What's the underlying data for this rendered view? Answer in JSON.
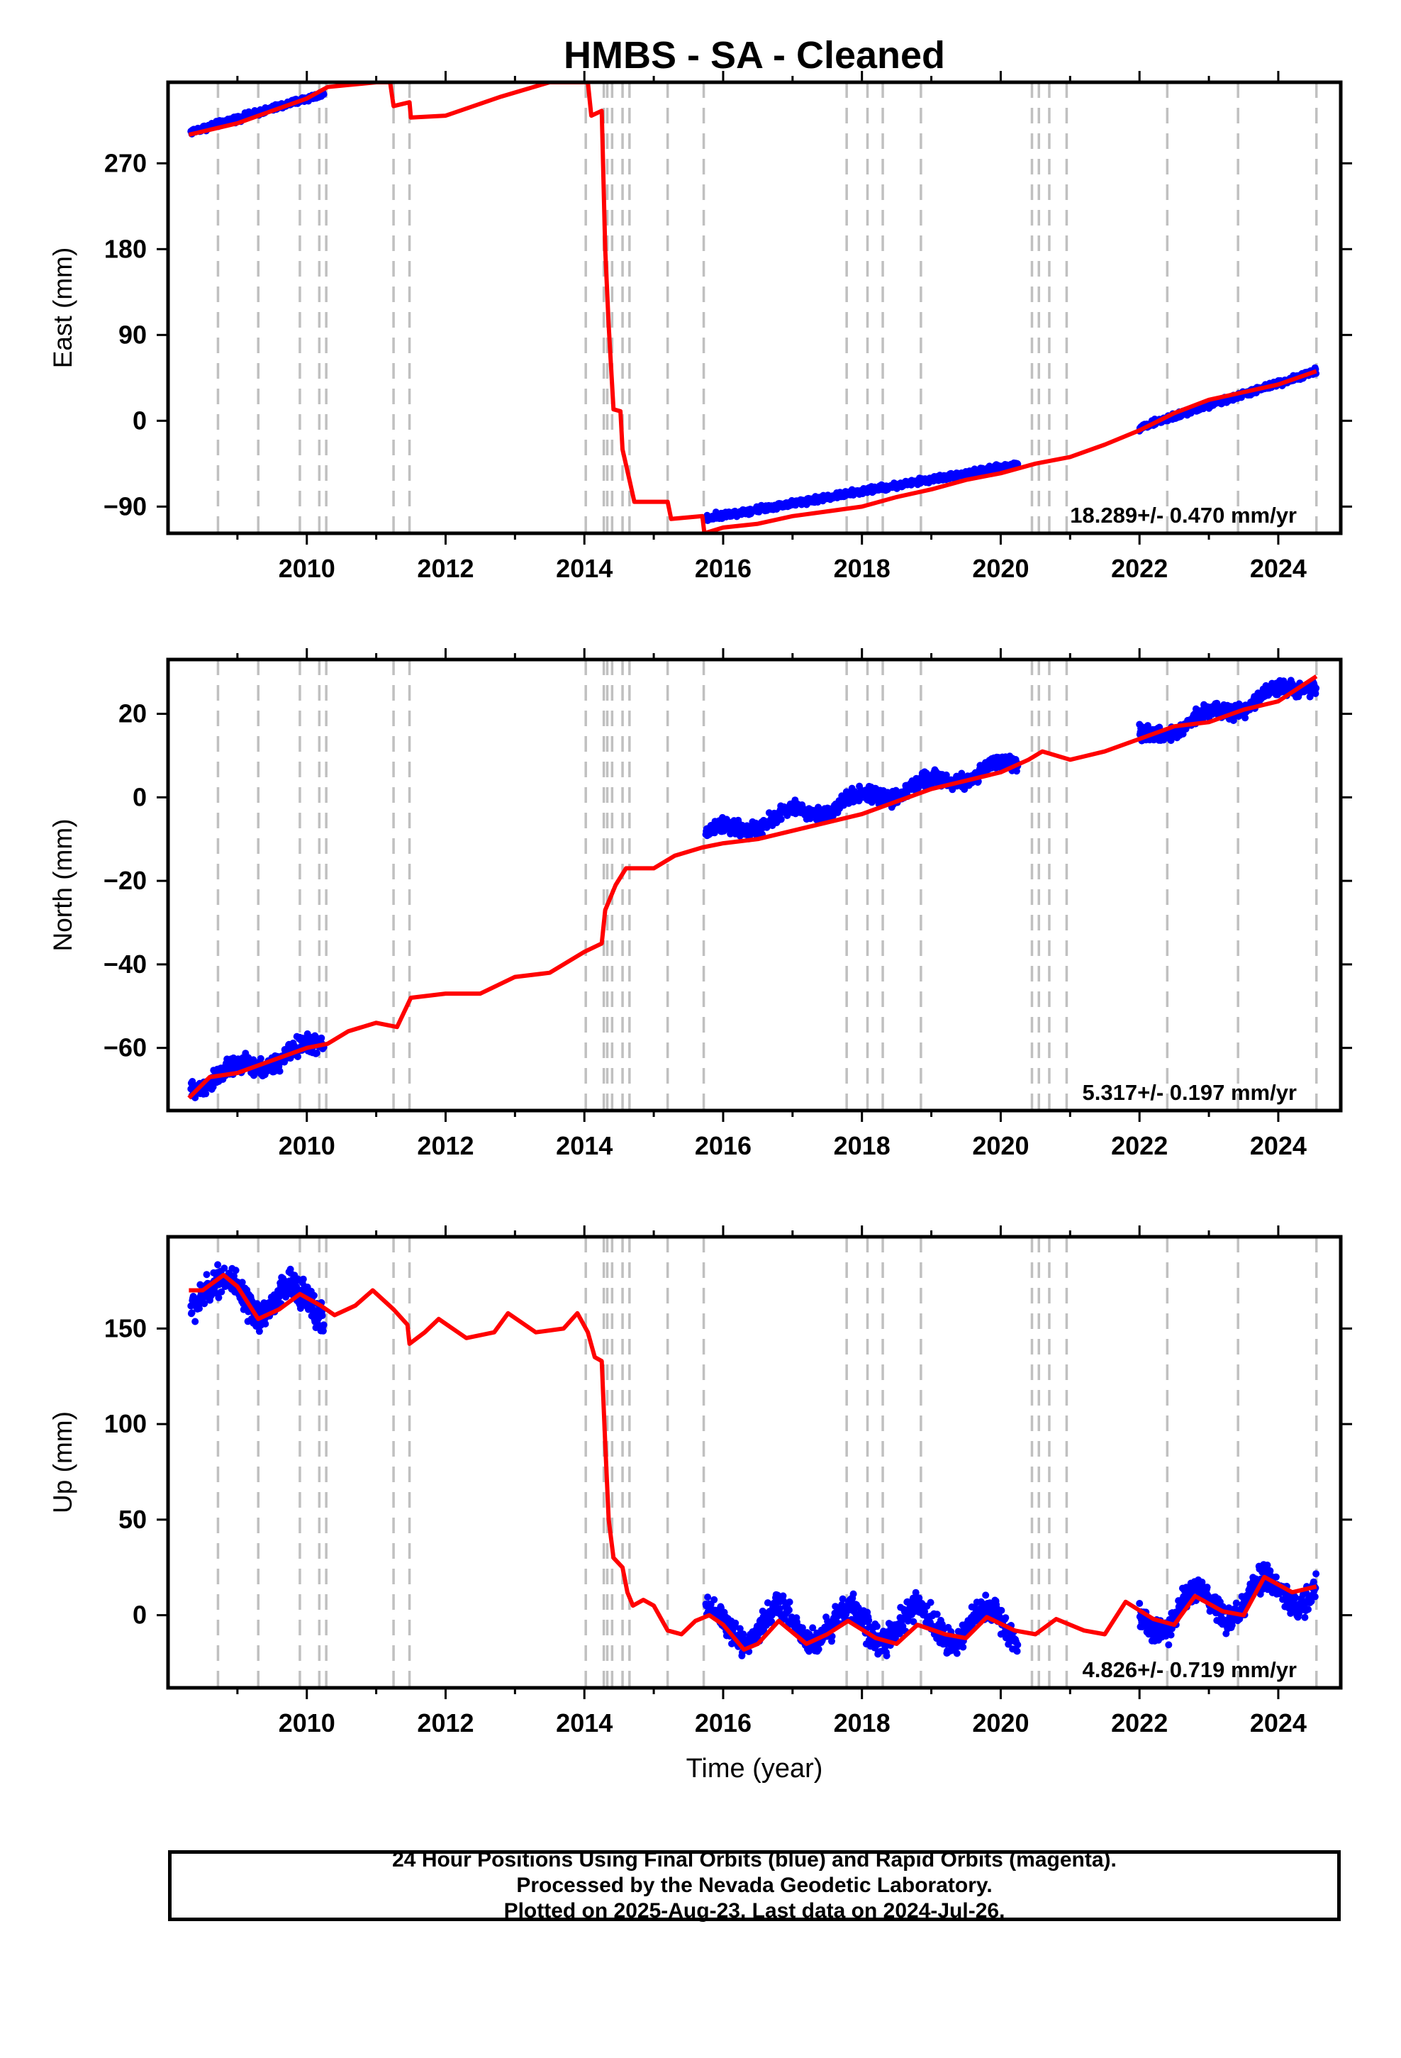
{
  "title": "HMBS  - SA - Cleaned",
  "x_axis_label": "Time (year)",
  "caption": {
    "line1": "24 Hour Positions Using Final Orbits (blue) and Rapid Orbits (magenta).",
    "line2": "Processed by the Nevada Geodetic Laboratory.",
    "line3": "Plotted on 2025-Aug-23. Last data on 2024-Jul-26."
  },
  "colors": {
    "data_points": "#0000ff",
    "model": "#ff0000",
    "event_lines": "#c0c0c0",
    "frame": "#000000"
  },
  "event_years": [
    2008.72,
    2009.3,
    2009.9,
    2010.18,
    2010.28,
    2011.25,
    2011.48,
    2014.02,
    2014.28,
    2014.33,
    2014.4,
    2014.55,
    2014.65,
    2015.2,
    2015.72,
    2017.78,
    2018.08,
    2018.3,
    2018.85,
    2020.45,
    2020.55,
    2020.7,
    2020.95,
    2022.4,
    2023.42,
    2024.55
  ],
  "chart_data": [
    {
      "type": "scatter",
      "component": "East",
      "ylabel": "East (mm)",
      "unit": "mm",
      "xlim": [
        2008.0,
        2024.9
      ],
      "ylim": [
        -118,
        355
      ],
      "x_ticks": [
        2010,
        2012,
        2014,
        2016,
        2018,
        2020,
        2022,
        2024
      ],
      "y_ticks": [
        -90,
        0,
        90,
        180,
        270
      ],
      "grid": false,
      "rate_label": "18.289+/- 0.470 mm/yr",
      "observation_segments": [
        {
          "start": 2008.33,
          "end": 2010.25,
          "y_start": 303,
          "y_end": 343,
          "noise": 3
        },
        {
          "start": 2015.75,
          "end": 2020.25,
          "y_start": -102,
          "y_end": -46,
          "noise": 3
        },
        {
          "start": 2022.0,
          "end": 2024.55,
          "y_start": -7,
          "y_end": 52,
          "noise": 3
        }
      ],
      "model_line": [
        [
          2008.3,
          300
        ],
        [
          2009.0,
          312
        ],
        [
          2009.5,
          325
        ],
        [
          2010.0,
          338
        ],
        [
          2010.3,
          350
        ],
        [
          2011.0,
          355
        ],
        [
          2011.2,
          355
        ],
        [
          2011.25,
          330
        ],
        [
          2011.48,
          334
        ],
        [
          2011.5,
          318
        ],
        [
          2012.0,
          320
        ],
        [
          2012.8,
          340
        ],
        [
          2013.5,
          355
        ],
        [
          2014.05,
          355
        ],
        [
          2014.1,
          320
        ],
        [
          2014.25,
          325
        ],
        [
          2014.3,
          180
        ],
        [
          2014.35,
          100
        ],
        [
          2014.42,
          12
        ],
        [
          2014.52,
          10
        ],
        [
          2014.55,
          -30
        ],
        [
          2014.65,
          -62
        ],
        [
          2014.72,
          -85
        ],
        [
          2015.2,
          -85
        ],
        [
          2015.25,
          -103
        ],
        [
          2015.7,
          -100
        ],
        [
          2015.73,
          -118
        ],
        [
          2016.0,
          -112
        ],
        [
          2016.5,
          -108
        ],
        [
          2017.0,
          -100
        ],
        [
          2017.5,
          -95
        ],
        [
          2018.0,
          -90
        ],
        [
          2018.5,
          -80
        ],
        [
          2019.0,
          -72
        ],
        [
          2019.5,
          -62
        ],
        [
          2020.0,
          -55
        ],
        [
          2020.5,
          -45
        ],
        [
          2021.0,
          -38
        ],
        [
          2021.5,
          -25
        ],
        [
          2022.0,
          -10
        ],
        [
          2022.5,
          8
        ],
        [
          2023.0,
          22
        ],
        [
          2023.5,
          30
        ],
        [
          2024.0,
          38
        ],
        [
          2024.55,
          52
        ]
      ]
    },
    {
      "type": "scatter",
      "component": "North",
      "ylabel": "North (mm)",
      "unit": "mm",
      "xlim": [
        2008.0,
        2024.9
      ],
      "ylim": [
        -75,
        33
      ],
      "x_ticks": [
        2010,
        2012,
        2014,
        2016,
        2018,
        2020,
        2022,
        2024
      ],
      "y_ticks": [
        -60,
        -40,
        -20,
        0,
        20
      ],
      "grid": false,
      "rate_label": "5.317+/- 0.197 mm/yr",
      "observation_segments": [
        {
          "start": 2008.33,
          "end": 2010.25,
          "y_start": -69,
          "y_end": -59,
          "noise": 2.2
        },
        {
          "start": 2015.75,
          "end": 2020.25,
          "y_start": -9,
          "y_end": 8,
          "noise": 1.8
        },
        {
          "start": 2022.0,
          "end": 2024.55,
          "y_start": 14,
          "y_end": 28,
          "noise": 1.6
        }
      ],
      "model_line": [
        [
          2008.3,
          -72
        ],
        [
          2008.6,
          -67
        ],
        [
          2009.0,
          -66
        ],
        [
          2009.5,
          -63
        ],
        [
          2010.0,
          -60
        ],
        [
          2010.3,
          -59
        ],
        [
          2010.6,
          -56
        ],
        [
          2011.0,
          -54
        ],
        [
          2011.3,
          -55
        ],
        [
          2011.5,
          -48
        ],
        [
          2012.0,
          -47
        ],
        [
          2012.5,
          -47
        ],
        [
          2013.0,
          -43
        ],
        [
          2013.5,
          -42
        ],
        [
          2014.0,
          -37
        ],
        [
          2014.25,
          -35
        ],
        [
          2014.3,
          -27
        ],
        [
          2014.45,
          -21
        ],
        [
          2014.6,
          -17
        ],
        [
          2015.0,
          -17
        ],
        [
          2015.3,
          -14
        ],
        [
          2015.7,
          -12
        ],
        [
          2016.0,
          -11
        ],
        [
          2016.5,
          -10
        ],
        [
          2017.0,
          -8
        ],
        [
          2017.5,
          -6
        ],
        [
          2018.0,
          -4
        ],
        [
          2018.5,
          -1
        ],
        [
          2019.0,
          2
        ],
        [
          2019.5,
          4
        ],
        [
          2020.0,
          6
        ],
        [
          2020.4,
          9
        ],
        [
          2020.6,
          11
        ],
        [
          2021.0,
          9
        ],
        [
          2021.5,
          11
        ],
        [
          2022.0,
          14
        ],
        [
          2022.5,
          17
        ],
        [
          2023.0,
          18
        ],
        [
          2023.5,
          21
        ],
        [
          2024.0,
          23
        ],
        [
          2024.55,
          29
        ]
      ]
    },
    {
      "type": "scatter",
      "component": "Up",
      "ylabel": "Up (mm)",
      "unit": "mm",
      "xlim": [
        2008.0,
        2024.9
      ],
      "ylim": [
        -38,
        198
      ],
      "x_ticks": [
        2010,
        2012,
        2014,
        2016,
        2018,
        2020,
        2022,
        2024
      ],
      "y_ticks": [
        0,
        50,
        100,
        150
      ],
      "grid": false,
      "rate_label": "4.826+/- 0.719 mm/yr",
      "observation_segments": [
        {
          "start": 2008.33,
          "end": 2010.25,
          "y_start": 170,
          "y_end": 162,
          "noise": 8
        },
        {
          "start": 2015.75,
          "end": 2020.25,
          "y_start": -5,
          "y_end": -5,
          "noise": 7
        },
        {
          "start": 2022.0,
          "end": 2024.55,
          "y_start": -2,
          "y_end": 15,
          "noise": 7
        }
      ],
      "model_line": [
        [
          2008.3,
          170
        ],
        [
          2008.5,
          170
        ],
        [
          2008.8,
          178
        ],
        [
          2009.0,
          172
        ],
        [
          2009.3,
          155
        ],
        [
          2009.6,
          160
        ],
        [
          2009.9,
          168
        ],
        [
          2010.2,
          162
        ],
        [
          2010.4,
          157
        ],
        [
          2010.7,
          162
        ],
        [
          2010.95,
          170
        ],
        [
          2011.25,
          160
        ],
        [
          2011.45,
          152
        ],
        [
          2011.48,
          142
        ],
        [
          2011.7,
          148
        ],
        [
          2011.9,
          155
        ],
        [
          2012.3,
          145
        ],
        [
          2012.7,
          148
        ],
        [
          2012.9,
          158
        ],
        [
          2013.3,
          148
        ],
        [
          2013.7,
          150
        ],
        [
          2013.9,
          158
        ],
        [
          2014.05,
          148
        ],
        [
          2014.15,
          135
        ],
        [
          2014.25,
          133
        ],
        [
          2014.3,
          90
        ],
        [
          2014.35,
          50
        ],
        [
          2014.42,
          30
        ],
        [
          2014.55,
          25
        ],
        [
          2014.62,
          12
        ],
        [
          2014.7,
          5
        ],
        [
          2014.85,
          8
        ],
        [
          2015.0,
          5
        ],
        [
          2015.2,
          -8
        ],
        [
          2015.4,
          -10
        ],
        [
          2015.6,
          -3
        ],
        [
          2015.8,
          0
        ],
        [
          2016.0,
          -5
        ],
        [
          2016.3,
          -18
        ],
        [
          2016.5,
          -15
        ],
        [
          2016.8,
          -3
        ],
        [
          2017.2,
          -15
        ],
        [
          2017.5,
          -10
        ],
        [
          2017.8,
          -3
        ],
        [
          2018.2,
          -12
        ],
        [
          2018.5,
          -15
        ],
        [
          2018.8,
          -5
        ],
        [
          2019.2,
          -10
        ],
        [
          2019.5,
          -12
        ],
        [
          2019.8,
          -1
        ],
        [
          2020.2,
          -8
        ],
        [
          2020.5,
          -10
        ],
        [
          2020.8,
          -2
        ],
        [
          2021.2,
          -8
        ],
        [
          2021.5,
          -10
        ],
        [
          2021.8,
          7
        ],
        [
          2022.2,
          -2
        ],
        [
          2022.5,
          -5
        ],
        [
          2022.8,
          10
        ],
        [
          2023.2,
          2
        ],
        [
          2023.5,
          0
        ],
        [
          2023.8,
          20
        ],
        [
          2024.2,
          12
        ],
        [
          2024.55,
          15
        ]
      ]
    }
  ]
}
